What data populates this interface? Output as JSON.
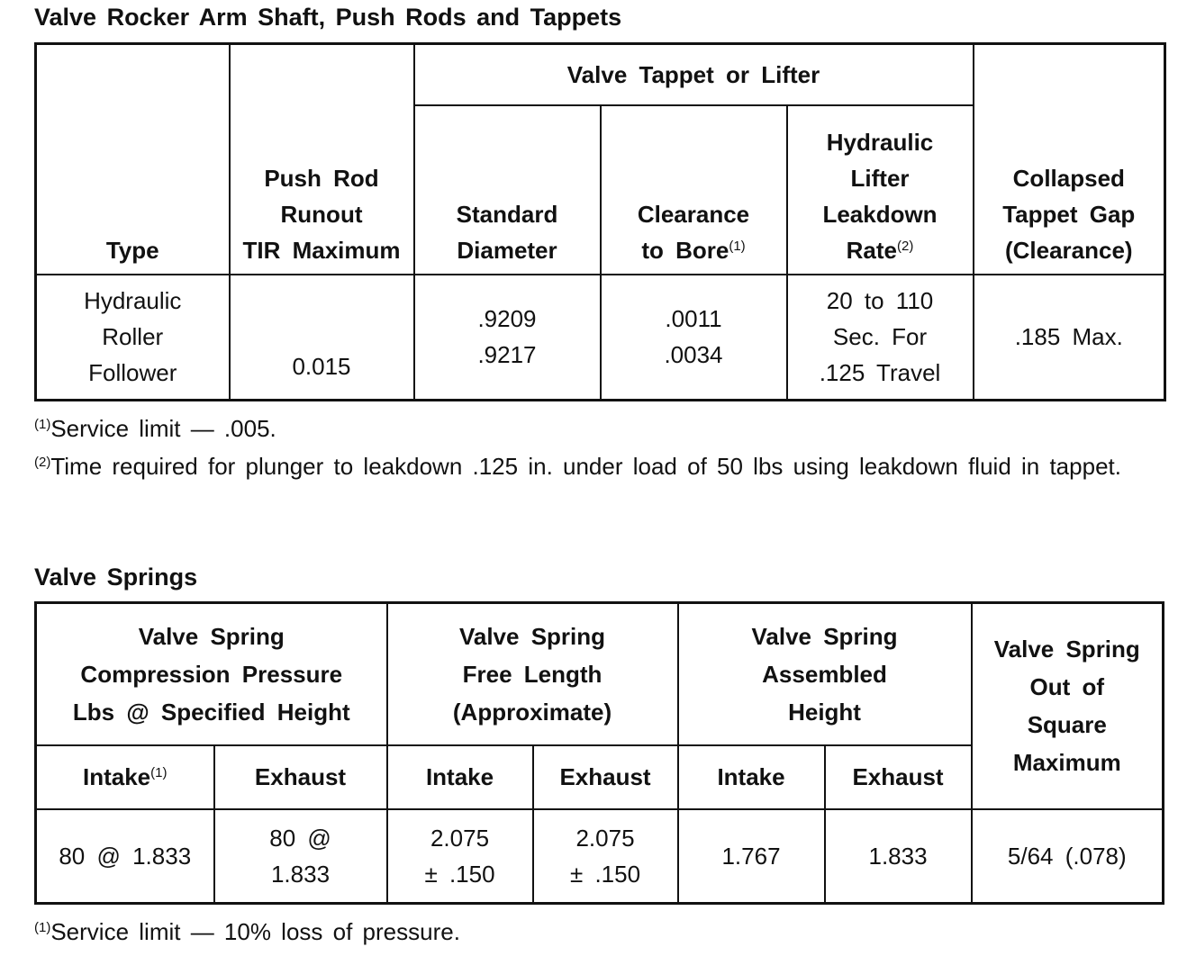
{
  "section1": {
    "title": "Valve Rocker Arm Shaft, Push Rods and Tappets",
    "group_header": "Valve Tappet or Lifter",
    "headers": {
      "type": "Type",
      "push_rod": "Push Rod\nRunout\nTIR Maximum",
      "std_diameter": "Standard\nDiameter",
      "clearance": "Clearance\nto Bore",
      "clearance_note": "(1)",
      "leakdown": "Hydraulic\nLifter\nLeakdown\nRate",
      "leakdown_note": "(2)",
      "collapsed": "Collapsed\nTappet Gap\n(Clearance)"
    },
    "row": {
      "type": "Hydraulic\nRoller\nFollower",
      "push_rod": "0.015",
      "std_diameter": ".9209\n.9217",
      "clearance": ".0011\n.0034",
      "leakdown": "20 to 110\nSec. For\n.125 Travel",
      "collapsed": ".185 Max."
    },
    "footnotes": [
      {
        "mark": "(1)",
        "text": "Service limit — .005."
      },
      {
        "mark": "(2)",
        "text": "Time required for plunger to leakdown .125 in. under load of 50 lbs using leakdown fluid in tappet."
      }
    ]
  },
  "section2": {
    "title": "Valve Springs",
    "group_headers": {
      "compression": "Valve Spring\nCompression Pressure\nLbs @ Specified Height",
      "free_length": "Valve Spring\nFree Length\n(Approximate)",
      "assembled": "Valve Spring\nAssembled\nHeight",
      "out_of_square": "Valve Spring\nOut of\nSquare\nMaximum"
    },
    "sub_headers": {
      "c_intake": "Intake",
      "c_intake_note": "(1)",
      "c_exhaust": "Exhaust",
      "f_intake": "Intake",
      "f_exhaust": "Exhaust",
      "a_intake": "Intake",
      "a_exhaust": "Exhaust"
    },
    "row": {
      "c_intake": "80 @ 1.833",
      "c_exhaust": "80 @\n1.833",
      "f_intake": "2.075\n± .150",
      "f_exhaust": "2.075\n± .150",
      "a_intake": "1.767",
      "a_exhaust": "1.833",
      "out_of_square": "5/64 (.078)"
    },
    "footnotes": [
      {
        "mark": "(1)",
        "text": "Service limit — 10% loss of pressure."
      }
    ]
  }
}
